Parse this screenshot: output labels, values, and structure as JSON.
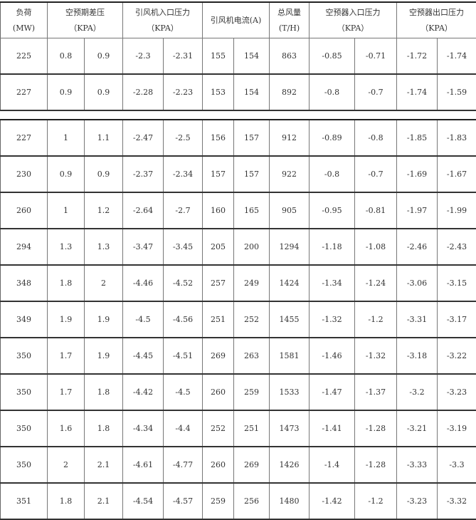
{
  "header": [
    {
      "line1": "负荷",
      "line2": "(MW)",
      "span": 1
    },
    {
      "line1": "空预期差压",
      "line2": "（KPA）",
      "span": 2
    },
    {
      "line1": "引风机入口压力",
      "line2": "（KPA）",
      "span": 2
    },
    {
      "line1": "引风机电流(A)",
      "line2": "",
      "span": 2
    },
    {
      "line1": "总风量",
      "line2": "(T/H)",
      "span": 1
    },
    {
      "line1": "空预器入口压力",
      "line2": "（KPA）",
      "span": 2
    },
    {
      "line1": "空预器出口压力",
      "line2": "（KPA）",
      "span": 2
    }
  ],
  "table1_rows": [
    [
      "225",
      "0.8",
      "0.9",
      "-2.3",
      "-2.31",
      "155",
      "154",
      "863",
      "-0.85",
      "-0.71",
      "-1.72",
      "-1.74"
    ],
    [
      "227",
      "0.9",
      "0.9",
      "-2.28",
      "-2.23",
      "153",
      "154",
      "892",
      "-0.8",
      "-0.7",
      "-1.74",
      "-1.59"
    ]
  ],
  "table2_rows": [
    [
      "227",
      "1",
      "1.1",
      "-2.47",
      "-2.5",
      "156",
      "157",
      "912",
      "-0.89",
      "-0.8",
      "-1.85",
      "-1.83"
    ],
    [
      "230",
      "0.9",
      "0.9",
      "-2.37",
      "-2.34",
      "157",
      "157",
      "922",
      "-0.8",
      "-0.7",
      "-1.69",
      "-1.67"
    ],
    [
      "260",
      "1",
      "1.2",
      "-2.64",
      "-2.7",
      "160",
      "165",
      "905",
      "-0.95",
      "-0.81",
      "-1.97",
      "-1.99"
    ],
    [
      "294",
      "1.3",
      "1.3",
      "-3.47",
      "-3.45",
      "205",
      "200",
      "1294",
      "-1.18",
      "-1.08",
      "-2.46",
      "-2.43"
    ],
    [
      "348",
      "1.8",
      "2",
      "-4.46",
      "-4.52",
      "257",
      "249",
      "1424",
      "-1.34",
      "-1.24",
      "-3.06",
      "-3.15"
    ],
    [
      "349",
      "1.9",
      "1.9",
      "-4.5",
      "-4.56",
      "251",
      "252",
      "1455",
      "-1.32",
      "-1.2",
      "-3.31",
      "-3.17"
    ],
    [
      "350",
      "1.7",
      "1.9",
      "-4.45",
      "-4.51",
      "269",
      "263",
      "1581",
      "-1.46",
      "-1.32",
      "-3.18",
      "-3.22"
    ],
    [
      "350",
      "1.7",
      "1.8",
      "-4.42",
      "-4.5",
      "260",
      "259",
      "1533",
      "-1.47",
      "-1.37",
      "-3.2",
      "-3.23"
    ],
    [
      "350",
      "1.6",
      "1.8",
      "-4.34",
      "-4.4",
      "252",
      "251",
      "1473",
      "-1.41",
      "-1.28",
      "-3.21",
      "-3.19"
    ],
    [
      "350",
      "2",
      "2.1",
      "-4.61",
      "-4.77",
      "260",
      "269",
      "1426",
      "-1.4",
      "-1.28",
      "-3.33",
      "-3.3"
    ],
    [
      "351",
      "1.8",
      "2.1",
      "-4.54",
      "-4.57",
      "259",
      "256",
      "1480",
      "-1.42",
      "-1.2",
      "-3.23",
      "-3.32"
    ]
  ]
}
